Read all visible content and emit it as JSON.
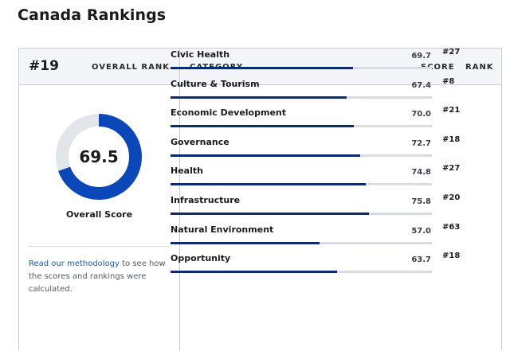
{
  "page": {
    "title": "Canada Rankings"
  },
  "overall": {
    "rank": "#19",
    "rank_label": "OVERALL RANK",
    "score": "69.5",
    "score_value": 69.5,
    "score_label": "Overall Score",
    "donut_fill_color": "#0a47b8",
    "donut_track_color": "#e2e6eb"
  },
  "methodology": {
    "link_text": "Read our methodology",
    "rest_text": " to see how the scores and rankings were calculated."
  },
  "table": {
    "headers": {
      "category": "CATEGORY",
      "score": "SCORE",
      "rank": "RANK"
    },
    "bar_color": "#0b2d6f",
    "rows": [
      {
        "category": "Civic Health",
        "score": "69.7",
        "rank": "#27",
        "value": 69.7
      },
      {
        "category": "Culture & Tourism",
        "score": "67.4",
        "rank": "#8",
        "value": 67.4
      },
      {
        "category": "Economic Development",
        "score": "70.0",
        "rank": "#21",
        "value": 70.0
      },
      {
        "category": "Governance",
        "score": "72.7",
        "rank": "#18",
        "value": 72.7
      },
      {
        "category": "Health",
        "score": "74.8",
        "rank": "#27",
        "value": 74.8
      },
      {
        "category": "Infrastructure",
        "score": "75.8",
        "rank": "#20",
        "value": 75.8
      },
      {
        "category": "Natural Environment",
        "score": "57.0",
        "rank": "#63",
        "value": 57.0
      },
      {
        "category": "Opportunity",
        "score": "63.7",
        "rank": "#18",
        "value": 63.7
      }
    ]
  }
}
